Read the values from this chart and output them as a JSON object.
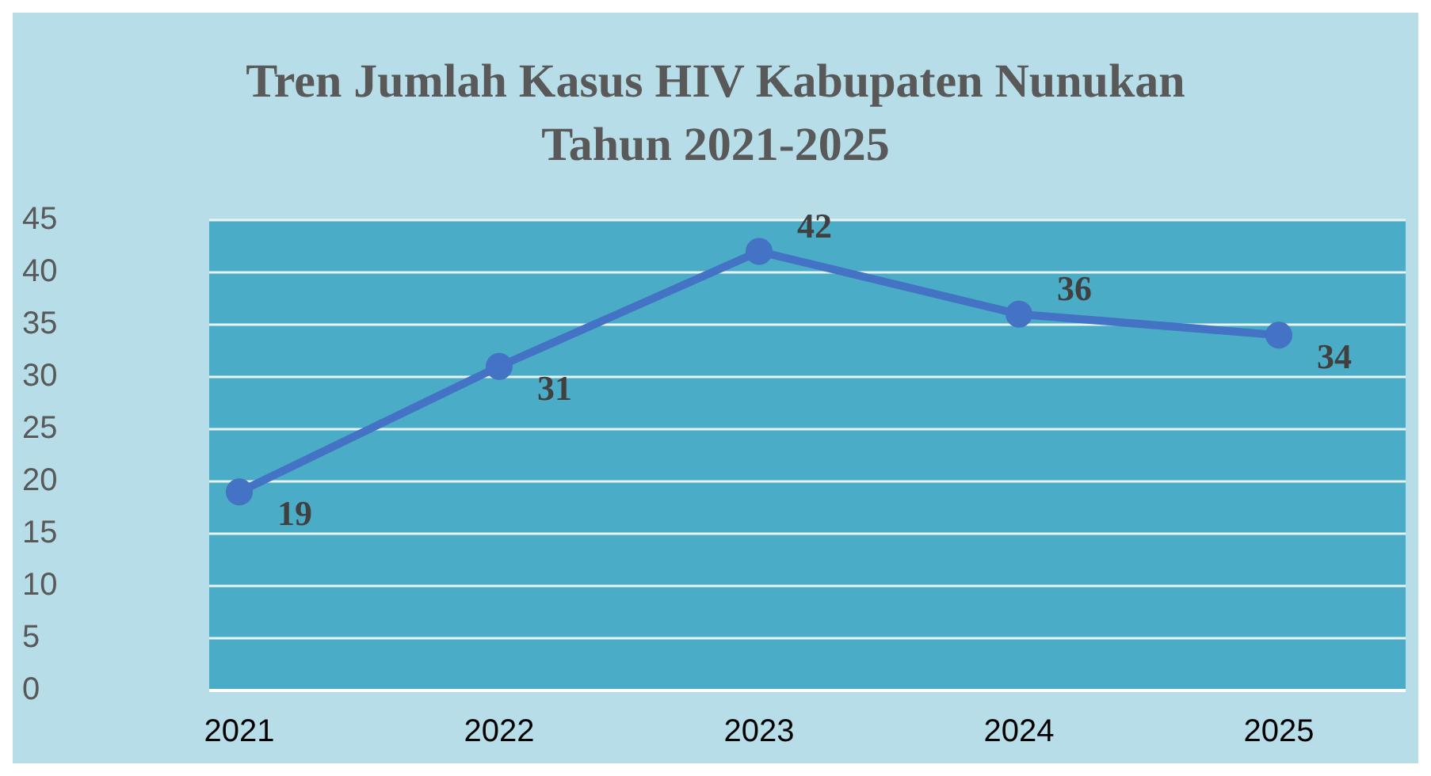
{
  "chart_data": {
    "type": "line",
    "title": "Tren Jumlah Kasus HIV Kabupaten Nunukan Tahun 2021-2025",
    "categories": [
      "2021",
      "2022",
      "2023",
      "2024",
      "2025"
    ],
    "series": [
      {
        "color": "#4472c4",
        "values": [
          19,
          31,
          42,
          36,
          34
        ]
      }
    ],
    "ylim": [
      0,
      45
    ],
    "yticks": [
      0,
      5,
      10,
      15,
      20,
      25,
      30,
      35,
      40,
      45
    ],
    "grid": "y",
    "legend": false,
    "marker": "circle",
    "line_style": "solid",
    "data_labels": true
  }
}
